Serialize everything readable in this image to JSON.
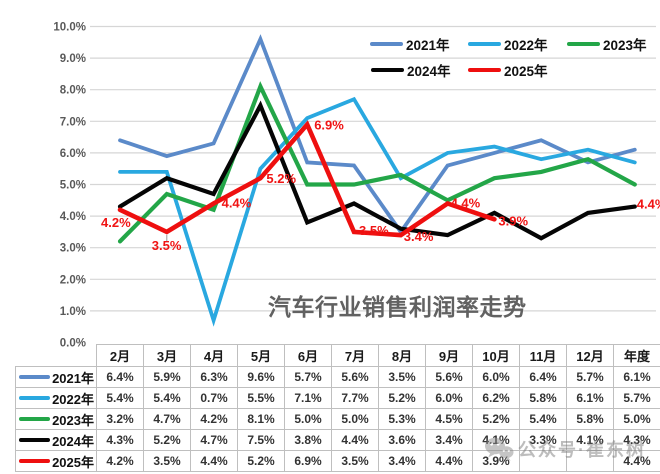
{
  "chart_data": {
    "type": "line",
    "title": "汽车行业销售利润率走势",
    "categories": [
      "2月",
      "3月",
      "4月",
      "5月",
      "6月",
      "7月",
      "8月",
      "9月",
      "10月",
      "11月",
      "12月",
      "年度"
    ],
    "xlabel": "",
    "ylabel": "",
    "ylim": [
      0,
      10
    ],
    "grid": true,
    "legend_position": "top-right",
    "y_axis": {
      "tick_labels": [
        "0.0%",
        "1.0%",
        "2.0%",
        "3.0%",
        "4.0%",
        "5.0%",
        "6.0%",
        "7.0%",
        "8.0%",
        "9.0%",
        "10.0%"
      ]
    },
    "series": [
      {
        "name": "2021年",
        "color": "#5B8AC9",
        "values": [
          6.4,
          5.9,
          6.3,
          9.6,
          5.7,
          5.6,
          3.5,
          5.6,
          6.0,
          6.4,
          5.7,
          6.1
        ]
      },
      {
        "name": "2022年",
        "color": "#29A8E0",
        "values": [
          5.4,
          5.4,
          0.7,
          5.5,
          7.1,
          7.7,
          5.2,
          6.0,
          6.2,
          5.8,
          6.1,
          5.7
        ]
      },
      {
        "name": "2023年",
        "color": "#23A648",
        "values": [
          3.2,
          4.7,
          4.2,
          8.1,
          5.0,
          5.0,
          5.3,
          4.5,
          5.2,
          5.4,
          5.8,
          5.0
        ]
      },
      {
        "name": "2024年",
        "color": "#050505",
        "values": [
          4.3,
          5.2,
          4.7,
          7.5,
          3.8,
          4.4,
          3.6,
          3.4,
          4.1,
          3.3,
          4.1,
          4.3
        ]
      },
      {
        "name": "2025年",
        "color": "#EE0F0F",
        "values": [
          4.2,
          3.5,
          4.4,
          5.2,
          6.9,
          3.5,
          3.4,
          4.4,
          3.9,
          null,
          null,
          4.4
        ]
      }
    ],
    "data_labels": {
      "series": "2025年",
      "labels": [
        "4.2%",
        "3.5%",
        "4.4%",
        "5.2%",
        "6.9%",
        "3.5%",
        "3.4%",
        "4.4%",
        "3.9%",
        null,
        null,
        "4.4%"
      ]
    }
  },
  "table": {
    "columns": [
      "2月",
      "3月",
      "4月",
      "5月",
      "6月",
      "7月",
      "8月",
      "9月",
      "10月",
      "11月",
      "12月",
      "年度"
    ],
    "rows": [
      {
        "label": "2021年",
        "color": "#5B8AC9",
        "values": [
          "6.4%",
          "5.9%",
          "6.3%",
          "9.6%",
          "5.7%",
          "5.6%",
          "3.5%",
          "5.6%",
          "6.0%",
          "6.4%",
          "5.7%",
          "6.1%"
        ]
      },
      {
        "label": "2022年",
        "color": "#29A8E0",
        "values": [
          "5.4%",
          "5.4%",
          "0.7%",
          "5.5%",
          "7.1%",
          "7.7%",
          "5.2%",
          "6.0%",
          "6.2%",
          "5.8%",
          "6.1%",
          "5.7%"
        ]
      },
      {
        "label": "2023年",
        "color": "#23A648",
        "values": [
          "3.2%",
          "4.7%",
          "4.2%",
          "8.1%",
          "5.0%",
          "5.0%",
          "5.3%",
          "4.5%",
          "5.2%",
          "5.4%",
          "5.8%",
          "5.0%"
        ]
      },
      {
        "label": "2024年",
        "color": "#050505",
        "values": [
          "4.3%",
          "5.2%",
          "4.7%",
          "7.5%",
          "3.8%",
          "4.4%",
          "3.6%",
          "3.4%",
          "4.1%",
          "3.3%",
          "4.1%",
          "4.3%"
        ]
      },
      {
        "label": "2025年",
        "color": "#EE0F0F",
        "values": [
          "4.2%",
          "3.5%",
          "4.4%",
          "5.2%",
          "6.9%",
          "3.5%",
          "3.4%",
          "4.4%",
          "3.9%",
          "",
          "",
          "4.4%"
        ]
      }
    ]
  },
  "watermark": {
    "icon": "wechat-icon",
    "text": "公众号·崔东树"
  }
}
